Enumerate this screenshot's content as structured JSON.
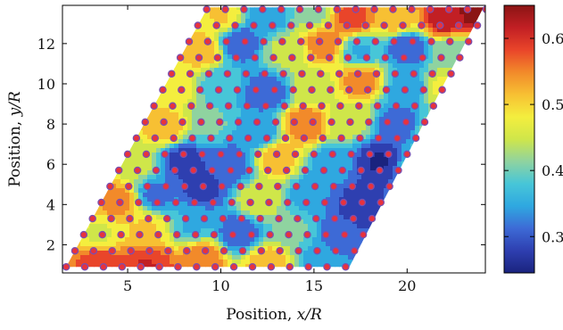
{
  "chart_data": {
    "type": "heatmap",
    "title": "",
    "xlabel_prefix": "Position, ",
    "xlabel_var": "x/R",
    "ylabel_prefix": "Position, ",
    "ylabel_var": "y/R",
    "xlim": [
      1.5,
      24.2
    ],
    "ylim": [
      0.6,
      13.9
    ],
    "xticks": [
      5,
      10,
      15,
      20
    ],
    "yticks": [
      2,
      4,
      6,
      8,
      10,
      12
    ],
    "colorbar": {
      "range": [
        0.245,
        0.65
      ],
      "ticks": [
        0.3,
        0.4,
        0.5,
        0.6
      ],
      "colormap": "jet",
      "colors": [
        "#1a237e",
        "#2e3fb0",
        "#3d6ad6",
        "#2fa8e0",
        "#47c6d8",
        "#8fd3a0",
        "#cfe64a",
        "#f4ee3e",
        "#f7c033",
        "#f28a2a",
        "#e9452a",
        "#c21f24",
        "#8b1414"
      ]
    },
    "domain": {
      "shape": "parallelogram",
      "corners": [
        [
          1.7,
          0.9
        ],
        [
          16.9,
          0.9
        ],
        [
          24.1,
          13.8
        ],
        [
          9.3,
          13.8
        ]
      ]
    },
    "grid": false,
    "lattice": {
      "marker_color": "#e8323c",
      "marker_edge": "#7a4fb0",
      "rows": 17,
      "row_spacing": 0.8,
      "x_spacing": 1.0
    },
    "field_anchors": [
      [
        3.5,
        1.2,
        0.58
      ],
      [
        6.0,
        1.0,
        0.6
      ],
      [
        9.0,
        1.3,
        0.56
      ],
      [
        12.5,
        1.1,
        0.52
      ],
      [
        15.5,
        1.2,
        0.34
      ],
      [
        3.5,
        2.5,
        0.46
      ],
      [
        6.0,
        2.8,
        0.5
      ],
      [
        8.5,
        3.0,
        0.36
      ],
      [
        11.0,
        2.6,
        0.3
      ],
      [
        14.0,
        2.8,
        0.4
      ],
      [
        16.5,
        2.6,
        0.3
      ],
      [
        4.5,
        4.2,
        0.55
      ],
      [
        6.5,
        4.5,
        0.32
      ],
      [
        9.0,
        4.8,
        0.28
      ],
      [
        12.0,
        4.2,
        0.46
      ],
      [
        15.0,
        4.5,
        0.33
      ],
      [
        17.5,
        4.0,
        0.27
      ],
      [
        19.5,
        3.8,
        0.3
      ],
      [
        5.5,
        6.0,
        0.44
      ],
      [
        8.0,
        6.2,
        0.28
      ],
      [
        10.5,
        6.0,
        0.3
      ],
      [
        13.0,
        6.3,
        0.52
      ],
      [
        16.0,
        6.0,
        0.34
      ],
      [
        18.5,
        6.1,
        0.26
      ],
      [
        20.5,
        5.8,
        0.38
      ],
      [
        7.0,
        7.8,
        0.52
      ],
      [
        9.5,
        8.0,
        0.4
      ],
      [
        12.0,
        7.6,
        0.33
      ],
      [
        14.5,
        8.0,
        0.56
      ],
      [
        17.0,
        8.2,
        0.45
      ],
      [
        19.5,
        8.0,
        0.3
      ],
      [
        21.5,
        7.6,
        0.42
      ],
      [
        7.5,
        9.8,
        0.48
      ],
      [
        10.0,
        10.0,
        0.37
      ],
      [
        12.5,
        9.6,
        0.3
      ],
      [
        15.0,
        9.8,
        0.45
      ],
      [
        17.5,
        10.2,
        0.55
      ],
      [
        20.0,
        9.8,
        0.34
      ],
      [
        22.0,
        9.8,
        0.47
      ],
      [
        9.0,
        11.6,
        0.52
      ],
      [
        11.0,
        12.0,
        0.3
      ],
      [
        13.5,
        11.6,
        0.44
      ],
      [
        15.5,
        12.0,
        0.55
      ],
      [
        17.5,
        11.6,
        0.36
      ],
      [
        20.0,
        11.8,
        0.3
      ],
      [
        22.5,
        11.6,
        0.4
      ],
      [
        10.0,
        13.4,
        0.5
      ],
      [
        12.5,
        13.4,
        0.33
      ],
      [
        15.0,
        13.5,
        0.42
      ],
      [
        17.0,
        13.3,
        0.58
      ],
      [
        19.5,
        13.2,
        0.52
      ],
      [
        22.0,
        13.2,
        0.62
      ],
      [
        23.8,
        13.6,
        0.65
      ]
    ]
  }
}
